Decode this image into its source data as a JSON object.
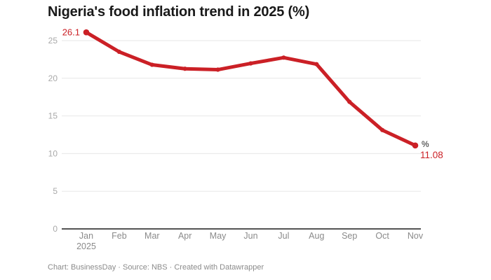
{
  "header": {
    "title": "Nigeria's food inflation trend in 2025 (%)"
  },
  "footer": {
    "attribution": "Chart: BusinessDay · Source: NBS · Created with Datawrapper"
  },
  "chart_data": {
    "type": "line",
    "title": "Nigeria's food inflation trend in 2025 (%)",
    "categories": [
      "Jan",
      "Feb",
      "Mar",
      "Apr",
      "May",
      "Jun",
      "Jul",
      "Aug",
      "Sep",
      "Oct",
      "Nov"
    ],
    "year_label": "2025",
    "values": [
      26.1,
      23.51,
      21.79,
      21.26,
      21.14,
      21.97,
      22.74,
      21.87,
      16.87,
      13.12,
      11.08
    ],
    "unit": "%",
    "y_ticks": [
      0,
      5,
      10,
      15,
      20,
      25
    ],
    "ylim": [
      0,
      27
    ],
    "grid": true,
    "legend": "none",
    "line_color": "#cb2026",
    "annotations": {
      "first_value_label": "26.1",
      "last_value_label": "11.08",
      "unit_label": "%"
    }
  }
}
